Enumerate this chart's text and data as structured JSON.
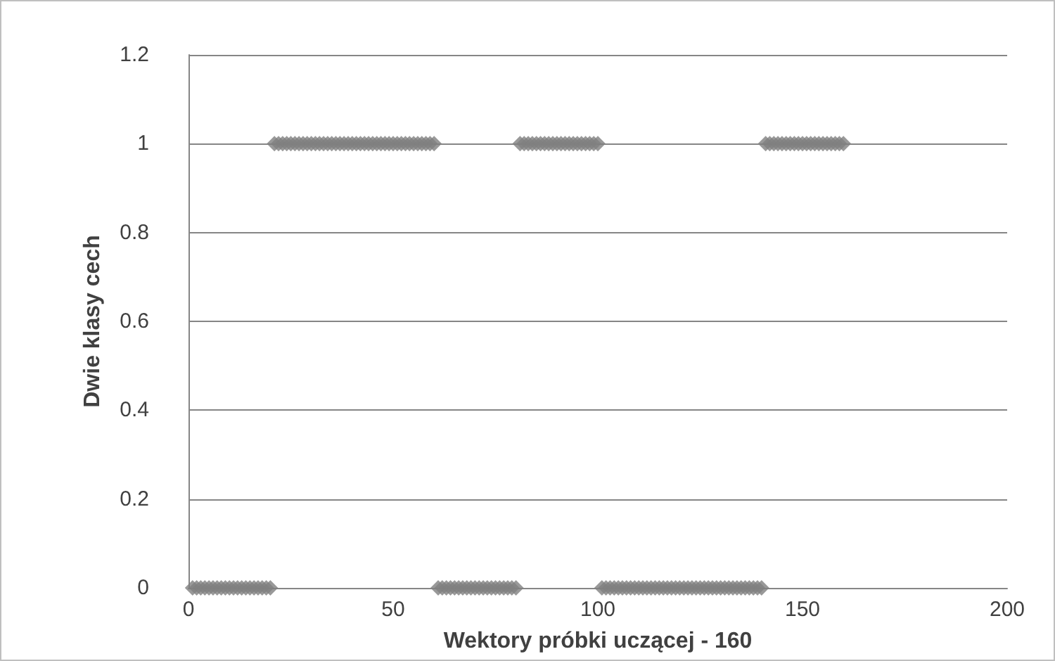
{
  "chart_data": {
    "type": "scatter",
    "xlabel": "Wektory próbki uczącej - 160",
    "ylabel": "Dwie klasy cech",
    "marker": "diamond",
    "grid": "y",
    "xlim": [
      0,
      200
    ],
    "xticks": [
      0,
      50,
      100,
      150,
      200
    ],
    "ylim": [
      0,
      1.2
    ],
    "yticks": [
      0,
      0.2,
      0.4,
      0.6,
      0.8,
      1,
      1.2
    ],
    "series": [
      {
        "color": "#7f7f7f",
        "x": [
          1,
          2,
          3,
          4,
          5,
          6,
          7,
          8,
          9,
          10,
          11,
          12,
          13,
          14,
          15,
          16,
          17,
          18,
          19,
          20,
          21,
          22,
          23,
          24,
          25,
          26,
          27,
          28,
          29,
          30,
          31,
          32,
          33,
          34,
          35,
          36,
          37,
          38,
          39,
          40,
          41,
          42,
          43,
          44,
          45,
          46,
          47,
          48,
          49,
          50,
          51,
          52,
          53,
          54,
          55,
          56,
          57,
          58,
          59,
          60,
          61,
          62,
          63,
          64,
          65,
          66,
          67,
          68,
          69,
          70,
          71,
          72,
          73,
          74,
          75,
          76,
          77,
          78,
          79,
          80,
          81,
          82,
          83,
          84,
          85,
          86,
          87,
          88,
          89,
          90,
          91,
          92,
          93,
          94,
          95,
          96,
          97,
          98,
          99,
          100,
          101,
          102,
          103,
          104,
          105,
          106,
          107,
          108,
          109,
          110,
          111,
          112,
          113,
          114,
          115,
          116,
          117,
          118,
          119,
          120,
          121,
          122,
          123,
          124,
          125,
          126,
          127,
          128,
          129,
          130,
          131,
          132,
          133,
          134,
          135,
          136,
          137,
          138,
          139,
          140,
          141,
          142,
          143,
          144,
          145,
          146,
          147,
          148,
          149,
          150,
          151,
          152,
          153,
          154,
          155,
          156,
          157,
          158,
          159,
          160
        ],
        "values": [
          0,
          0,
          0,
          0,
          0,
          0,
          0,
          0,
          0,
          0,
          0,
          0,
          0,
          0,
          0,
          0,
          0,
          0,
          0,
          0,
          1,
          1,
          1,
          1,
          1,
          1,
          1,
          1,
          1,
          1,
          1,
          1,
          1,
          1,
          1,
          1,
          1,
          1,
          1,
          1,
          1,
          1,
          1,
          1,
          1,
          1,
          1,
          1,
          1,
          1,
          1,
          1,
          1,
          1,
          1,
          1,
          1,
          1,
          1,
          1,
          0,
          0,
          0,
          0,
          0,
          0,
          0,
          0,
          0,
          0,
          0,
          0,
          0,
          0,
          0,
          0,
          0,
          0,
          0,
          0,
          1,
          1,
          1,
          1,
          1,
          1,
          1,
          1,
          1,
          1,
          1,
          1,
          1,
          1,
          1,
          1,
          1,
          1,
          1,
          1,
          0,
          0,
          0,
          0,
          0,
          0,
          0,
          0,
          0,
          0,
          0,
          0,
          0,
          0,
          0,
          0,
          0,
          0,
          0,
          0,
          0,
          0,
          0,
          0,
          0,
          0,
          0,
          0,
          0,
          0,
          0,
          0,
          0,
          0,
          0,
          0,
          0,
          0,
          0,
          0,
          1,
          1,
          1,
          1,
          1,
          1,
          1,
          1,
          1,
          1,
          1,
          1,
          1,
          1,
          1,
          1,
          1,
          1,
          1,
          1
        ]
      }
    ]
  }
}
